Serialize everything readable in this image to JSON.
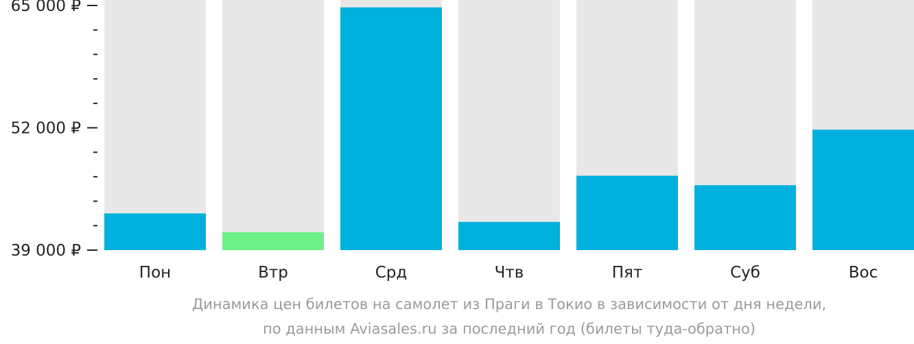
{
  "chart_data": {
    "type": "bar",
    "categories": [
      "Пон",
      "Втр",
      "Срд",
      "Чтв",
      "Пят",
      "Суб",
      "Вос"
    ],
    "values": [
      42900,
      40900,
      64800,
      42000,
      46900,
      45900,
      51800
    ],
    "highlight_index": 1,
    "ylim": [
      39000,
      65000
    ],
    "ytick_values": [
      39000,
      52000,
      65000
    ],
    "ytick_labels": [
      "39 000 ₽",
      "52 000 ₽",
      "65 000 ₽"
    ],
    "minor_tick_count": 4,
    "colors": {
      "bar": "#00b0dd",
      "bar_highlight": "#6df088",
      "bar_background": "#e8e8e8",
      "axis_text": "#222222",
      "caption_text": "#9a9a9a"
    }
  },
  "caption": {
    "line1": "Динамика цен билетов на самолет из Праги в Токио в зависимости от дня недели,",
    "line2": "по данным Aviasales.ru за последний год (билеты туда-обратно)"
  }
}
